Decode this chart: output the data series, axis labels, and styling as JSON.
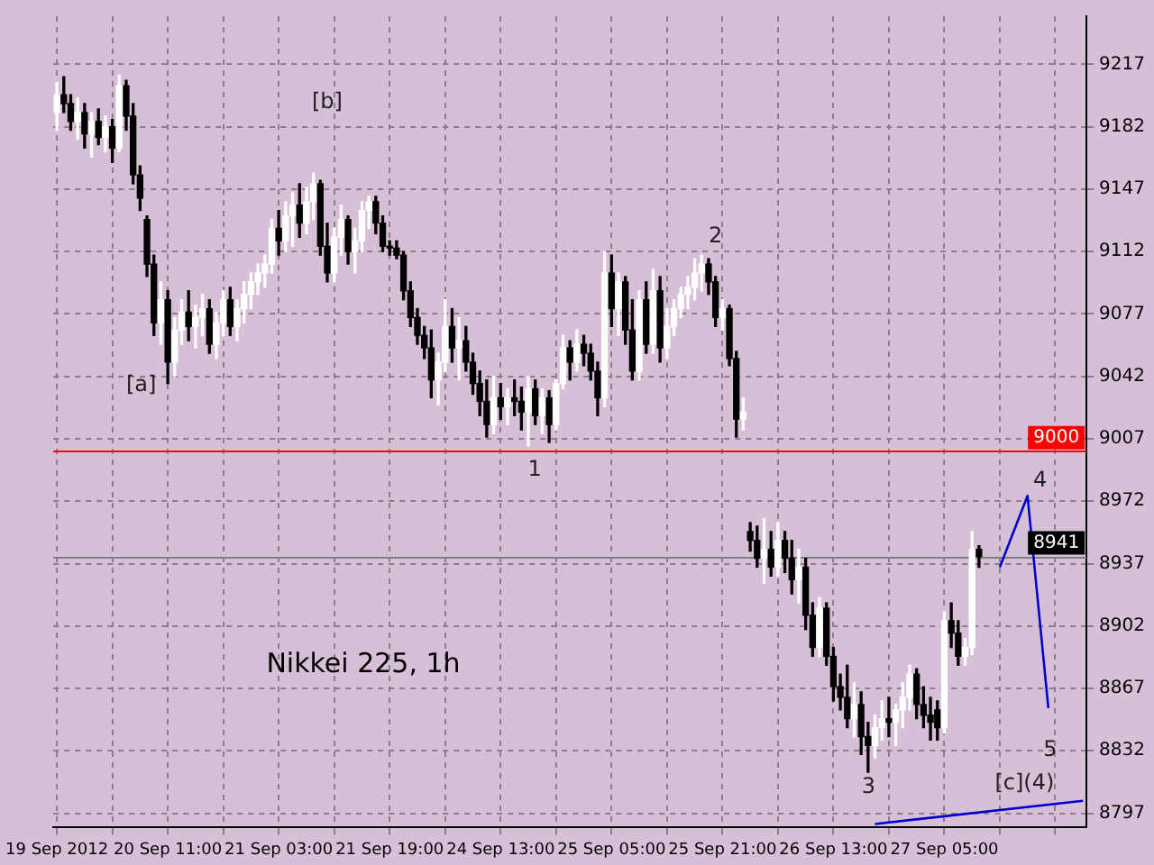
{
  "chart_data": {
    "type": "candlestick",
    "title": "Nikkei 225, 1h",
    "categories": [
      "19 Sep 2012",
      null,
      null,
      null,
      null,
      null,
      null,
      null,
      null,
      null,
      null,
      null,
      null,
      null,
      null,
      null,
      "20 Sep 11:00",
      null,
      null,
      null,
      null,
      null,
      null,
      null,
      null,
      null,
      null,
      null,
      null,
      null,
      null,
      null,
      "21 Sep 03:00",
      null,
      null,
      null,
      null,
      null,
      null,
      null,
      null,
      null,
      null,
      null,
      null,
      null,
      null,
      null,
      "21 Sep 19:00",
      null,
      null,
      null,
      null,
      null,
      null,
      null,
      null,
      null,
      null,
      null,
      null,
      null,
      null,
      null,
      "24 Sep 13:00",
      null,
      null,
      null,
      null,
      null,
      null,
      null,
      null,
      null,
      null,
      null,
      null,
      null,
      null,
      null,
      "25 Sep 05:00",
      null,
      null,
      null,
      null,
      null,
      null,
      null,
      null,
      null,
      null,
      null,
      null,
      null,
      null,
      null,
      "25 Sep 21:00",
      null,
      null,
      null,
      null,
      null,
      null,
      null,
      null,
      null,
      null,
      null,
      null,
      null,
      null,
      null,
      "26 Sep 13:00",
      null,
      null,
      null,
      null,
      null,
      null,
      null,
      null,
      null,
      null,
      null,
      null,
      null,
      null,
      null,
      "27 Sep 05:00",
      null,
      null,
      null,
      null,
      null,
      null,
      null,
      null,
      null,
      null,
      null,
      null,
      null,
      null,
      null,
      null,
      null,
      null,
      null,
      null
    ],
    "ohlc": [
      [
        9190,
        9207,
        9180,
        9200
      ],
      [
        9200,
        9210,
        9190,
        9195
      ],
      [
        9195,
        9200,
        9180,
        9185
      ],
      [
        9185,
        9198,
        9175,
        9190
      ],
      [
        9190,
        9195,
        9170,
        9178
      ],
      [
        9178,
        9190,
        9165,
        9185
      ],
      [
        9185,
        9192,
        9172,
        9176
      ],
      [
        9176,
        9188,
        9168,
        9182
      ],
      [
        9182,
        9186,
        9162,
        9170
      ],
      [
        9170,
        9211,
        9168,
        9205
      ],
      [
        9205,
        9208,
        9180,
        9188
      ],
      [
        9188,
        9195,
        9150,
        9155
      ],
      [
        9155,
        9160,
        9135,
        9142
      ],
      [
        9130,
        9132,
        9098,
        9105
      ],
      [
        9105,
        9110,
        9065,
        9072
      ],
      [
        9072,
        9095,
        9060,
        9085
      ],
      [
        9085,
        9090,
        9038,
        9050
      ],
      [
        9050,
        9075,
        9042,
        9068
      ],
      [
        9068,
        9085,
        9060,
        9078
      ],
      [
        9078,
        9090,
        9062,
        9070
      ],
      [
        9070,
        9082,
        9058,
        9075
      ],
      [
        9075,
        9088,
        9065,
        9080
      ],
      [
        9080,
        9085,
        9055,
        9060
      ],
      [
        9060,
        9078,
        9052,
        9072
      ],
      [
        9072,
        9090,
        9065,
        9085
      ],
      [
        9085,
        9092,
        9065,
        9070
      ],
      [
        9070,
        9085,
        9062,
        9080
      ],
      [
        9080,
        9095,
        9072,
        9088
      ],
      [
        9088,
        9100,
        9080,
        9095
      ],
      [
        9095,
        9105,
        9088,
        9100
      ],
      [
        9100,
        9110,
        9092,
        9105
      ],
      [
        9105,
        9130,
        9100,
        9125
      ],
      [
        9125,
        9135,
        9110,
        9118
      ],
      [
        9118,
        9140,
        9112,
        9132
      ],
      [
        9132,
        9145,
        9115,
        9138
      ],
      [
        9138,
        9150,
        9120,
        9128
      ],
      [
        9128,
        9148,
        9122,
        9140
      ],
      [
        9140,
        9156,
        9130,
        9150
      ],
      [
        9150,
        9152,
        9110,
        9115
      ],
      [
        9115,
        9128,
        9095,
        9100
      ],
      [
        9100,
        9125,
        9095,
        9120
      ],
      [
        9120,
        9138,
        9110,
        9130
      ],
      [
        9130,
        9132,
        9105,
        9112
      ],
      [
        9112,
        9125,
        9100,
        9118
      ],
      [
        9118,
        9140,
        9112,
        9135
      ],
      [
        9135,
        9143,
        9125,
        9140
      ],
      [
        9140,
        9143,
        9122,
        9128
      ],
      [
        9128,
        9132,
        9112,
        9115
      ],
      [
        9115,
        9118,
        9110,
        9114
      ],
      [
        9114,
        9118,
        9108,
        9110
      ],
      [
        9110,
        9112,
        9085,
        9090
      ],
      [
        9090,
        9095,
        9070,
        9075
      ],
      [
        9075,
        9080,
        9060,
        9065
      ],
      [
        9065,
        9070,
        9052,
        9058
      ],
      [
        9058,
        9068,
        9030,
        9040
      ],
      [
        9040,
        9055,
        9026,
        9050
      ],
      [
        9050,
        9085,
        9045,
        9070
      ],
      [
        9070,
        9080,
        9050,
        9058
      ],
      [
        9058,
        9075,
        9040,
        9062
      ],
      [
        9062,
        9070,
        9045,
        9050
      ],
      [
        9050,
        9055,
        9032,
        9038
      ],
      [
        9038,
        9045,
        9020,
        9028
      ],
      [
        9028,
        9040,
        9008,
        9015
      ],
      [
        9015,
        9042,
        9010,
        9030
      ],
      [
        9030,
        9038,
        9018,
        9025
      ],
      [
        9025,
        9035,
        9015,
        9030
      ],
      [
        9030,
        9040,
        9020,
        9028
      ],
      [
        9028,
        9036,
        9012,
        9022
      ],
      [
        9022,
        9042,
        9003,
        9035
      ],
      [
        9035,
        9040,
        9015,
        9020
      ],
      [
        9020,
        9035,
        9010,
        9030
      ],
      [
        9030,
        9034,
        9005,
        9015
      ],
      [
        9015,
        9040,
        9012,
        9038
      ],
      [
        9038,
        9065,
        9035,
        9058
      ],
      [
        9058,
        9062,
        9040,
        9050
      ],
      [
        9050,
        9068,
        9045,
        9060
      ],
      [
        9060,
        9065,
        9048,
        9055
      ],
      [
        9055,
        9060,
        9040,
        9045
      ],
      [
        9045,
        9050,
        9020,
        9030
      ],
      [
        9030,
        9112,
        9025,
        9100
      ],
      [
        9100,
        9110,
        9070,
        9080
      ],
      [
        9080,
        9100,
        9065,
        9095
      ],
      [
        9095,
        9098,
        9060,
        9068
      ],
      [
        9068,
        9085,
        9040,
        9045
      ],
      [
        9045,
        9090,
        9040,
        9085
      ],
      [
        9085,
        9095,
        9055,
        9060
      ],
      [
        9060,
        9102,
        9055,
        9090
      ],
      [
        9090,
        9098,
        9050,
        9058
      ],
      [
        9058,
        9080,
        9052,
        9070
      ],
      [
        9070,
        9085,
        9065,
        9080
      ],
      [
        9080,
        9092,
        9075,
        9088
      ],
      [
        9088,
        9098,
        9080,
        9092
      ],
      [
        9092,
        9108,
        9085,
        9100
      ],
      [
        9100,
        9110,
        9090,
        9105
      ],
      [
        9105,
        9108,
        9088,
        9095
      ],
      [
        9095,
        9098,
        9070,
        9075
      ],
      [
        9075,
        9085,
        9068,
        9080
      ],
      [
        9080,
        9082,
        9048,
        9052
      ],
      [
        9052,
        9056,
        9008,
        9018
      ],
      [
        9018,
        9030,
        9012,
        9022
      ],
      [
        8955,
        8960,
        8944,
        8950
      ],
      [
        8950,
        8958,
        8935,
        8940
      ],
      [
        8940,
        8962,
        8926,
        8945
      ],
      [
        8945,
        8955,
        8930,
        8935
      ],
      [
        8935,
        8960,
        8930,
        8950
      ],
      [
        8950,
        8955,
        8932,
        8940
      ],
      [
        8940,
        8950,
        8920,
        8928
      ],
      [
        8928,
        8945,
        8915,
        8935
      ],
      [
        8935,
        8940,
        8900,
        8908
      ],
      [
        8908,
        8915,
        8885,
        8890
      ],
      [
        8890,
        8918,
        8885,
        8912
      ],
      [
        8912,
        8915,
        8880,
        8885
      ],
      [
        8885,
        8890,
        8860,
        8868
      ],
      [
        8868,
        8875,
        8855,
        8862
      ],
      [
        8862,
        8880,
        8845,
        8850
      ],
      [
        8850,
        8870,
        8840,
        8858
      ],
      [
        8858,
        8865,
        8830,
        8840
      ],
      [
        8840,
        8848,
        8820,
        8835
      ],
      [
        8835,
        8852,
        8828,
        8845
      ],
      [
        8845,
        8860,
        8838,
        8850
      ],
      [
        8850,
        8862,
        8840,
        8848
      ],
      [
        8848,
        8858,
        8835,
        8855
      ],
      [
        8855,
        8870,
        8845,
        8862
      ],
      [
        8862,
        8880,
        8855,
        8875
      ],
      [
        8875,
        8878,
        8850,
        8858
      ],
      [
        8858,
        8868,
        8845,
        8852
      ],
      [
        8852,
        8862,
        8838,
        8848
      ],
      [
        8855,
        8860,
        8838,
        8845
      ],
      [
        8845,
        8910,
        8842,
        8905
      ],
      [
        8905,
        8915,
        8890,
        8898
      ],
      [
        8898,
        8905,
        8880,
        8885
      ],
      [
        8885,
        8895,
        8880,
        8890
      ],
      [
        8890,
        8955,
        8886,
        8945
      ],
      [
        8945,
        8947,
        8935,
        8941
      ],
      null,
      null,
      null,
      null,
      null,
      null,
      null,
      null,
      null,
      null,
      null,
      null,
      null,
      null,
      null
    ],
    "colors": [
      "#ffffff",
      "#000000",
      "#000000",
      "#ffffff",
      "#000000",
      "#ffffff",
      "#000000",
      "#ffffff",
      "#000000",
      "#ffffff",
      "#000000",
      "#000000",
      "#000000",
      "#000000",
      "#000000",
      "#ffffff",
      "#000000",
      "#ffffff",
      "#ffffff",
      "#000000",
      "#ffffff",
      "#ffffff",
      "#000000",
      "#ffffff",
      "#ffffff",
      "#000000",
      "#ffffff",
      "#ffffff",
      "#ffffff",
      "#ffffff",
      "#ffffff",
      "#ffffff",
      "#000000",
      "#ffffff",
      "#ffffff",
      "#000000",
      "#ffffff",
      "#ffffff",
      "#000000",
      "#000000",
      "#ffffff",
      "#ffffff",
      "#000000",
      "#ffffff",
      "#ffffff",
      "#ffffff",
      "#000000",
      "#000000",
      "#000000",
      "#000000",
      "#000000",
      "#000000",
      "#000000",
      "#000000",
      "#000000",
      "#ffffff",
      "#ffffff",
      "#000000",
      "#ffffff",
      "#000000",
      "#000000",
      "#000000",
      "#000000",
      "#ffffff",
      "#000000",
      "#ffffff",
      "#000000",
      "#000000",
      "#ffffff",
      "#000000",
      "#ffffff",
      "#000000",
      "#ffffff",
      "#ffffff",
      "#000000",
      "#ffffff",
      "#000000",
      "#000000",
      "#000000",
      "#ffffff",
      "#000000",
      "#ffffff",
      "#000000",
      "#000000",
      "#ffffff",
      "#000000",
      "#ffffff",
      "#000000",
      "#ffffff",
      "#ffffff",
      "#ffffff",
      "#ffffff",
      "#ffffff",
      "#ffffff",
      "#000000",
      "#000000",
      "#ffffff",
      "#000000",
      "#000000",
      "#ffffff",
      "#000000",
      "#000000",
      "#ffffff",
      "#000000",
      "#ffffff",
      "#000000",
      "#000000",
      "#ffffff",
      "#000000",
      "#000000",
      "#ffffff",
      "#000000",
      "#000000",
      "#000000",
      "#000000",
      "#ffffff",
      "#000000",
      "#000000",
      "#ffffff",
      "#ffffff",
      "#000000",
      "#ffffff",
      "#ffffff",
      "#ffffff",
      "#000000",
      "#000000",
      "#000000",
      "#000000",
      "#ffffff",
      "#000000",
      "#000000",
      "#ffffff",
      "#ffffff",
      "#000000",
      null,
      null,
      null,
      null,
      null,
      null,
      null,
      null,
      null,
      null,
      null,
      null,
      null,
      null,
      null
    ],
    "series": [
      {
        "type": "line",
        "color": "#0000cc",
        "values": [
          null,
          null,
          null,
          null,
          null,
          null,
          null,
          null,
          null,
          null,
          null,
          null,
          null,
          null,
          null,
          null,
          null,
          null,
          null,
          null,
          null,
          null,
          null,
          null,
          null,
          null,
          null,
          null,
          null,
          null,
          null,
          null,
          null,
          null,
          null,
          null,
          null,
          null,
          null,
          null,
          null,
          null,
          null,
          null,
          null,
          null,
          null,
          null,
          null,
          null,
          null,
          null,
          null,
          null,
          null,
          null,
          null,
          null,
          null,
          null,
          null,
          null,
          null,
          null,
          null,
          null,
          null,
          null,
          null,
          null,
          null,
          null,
          null,
          null,
          null,
          null,
          null,
          null,
          null,
          null,
          null,
          null,
          null,
          null,
          null,
          null,
          null,
          null,
          null,
          null,
          null,
          null,
          null,
          null,
          null,
          null,
          null,
          null,
          null,
          null,
          null,
          null,
          null,
          null,
          null,
          null,
          null,
          null,
          null,
          null,
          null,
          null,
          null,
          null,
          null,
          null,
          null,
          null,
          null,
          null,
          null,
          null,
          null,
          null,
          null,
          null,
          null,
          null,
          null,
          null,
          null,
          null,
          null,
          null,
          null,
          null,
          8935,
          null,
          null,
          null,
          8975,
          null,
          null,
          8856,
          null,
          null,
          null,
          null,
          null
        ]
      },
      {
        "type": "line",
        "color": "#0000cc",
        "values": [
          null,
          null,
          null,
          null,
          null,
          null,
          null,
          null,
          null,
          null,
          null,
          null,
          null,
          null,
          null,
          null,
          null,
          null,
          null,
          null,
          null,
          null,
          null,
          null,
          null,
          null,
          null,
          null,
          null,
          null,
          null,
          null,
          null,
          null,
          null,
          null,
          null,
          null,
          null,
          null,
          null,
          null,
          null,
          null,
          null,
          null,
          null,
          null,
          null,
          null,
          null,
          null,
          null,
          null,
          null,
          null,
          null,
          null,
          null,
          null,
          null,
          null,
          null,
          null,
          null,
          null,
          null,
          null,
          null,
          null,
          null,
          null,
          null,
          null,
          null,
          null,
          null,
          null,
          null,
          null,
          null,
          null,
          null,
          null,
          null,
          null,
          null,
          null,
          null,
          null,
          null,
          null,
          null,
          null,
          null,
          null,
          null,
          null,
          null,
          null,
          null,
          null,
          null,
          null,
          null,
          null,
          null,
          null,
          null,
          null,
          null,
          null,
          null,
          null,
          null,
          null,
          null,
          null,
          8791,
          null,
          null,
          null,
          null,
          null,
          null,
          null,
          null,
          null,
          null,
          null,
          null,
          null,
          null,
          null,
          null,
          null,
          null,
          null,
          null,
          null,
          null,
          null,
          null,
          null,
          null,
          null,
          null,
          null,
          8804
        ]
      }
    ],
    "marker": "none",
    "ylim": [
      8789,
      9244
    ],
    "yticks": [
      8797,
      8832,
      8867,
      8902,
      8937,
      8972,
      9007,
      9042,
      9077,
      9112,
      9147,
      9182,
      9217
    ],
    "grid": true,
    "legend": false,
    "ref_lines": [
      {
        "axis": "y",
        "value": 9000,
        "label": "9000",
        "color": "#ff0000"
      },
      {
        "axis": "y",
        "value": 8941,
        "label": "8941",
        "color": "#808080"
      }
    ],
    "annotations": [
      "[a]",
      "[b]",
      "1",
      "2",
      "3",
      "4",
      "5",
      "[c](4)"
    ]
  }
}
